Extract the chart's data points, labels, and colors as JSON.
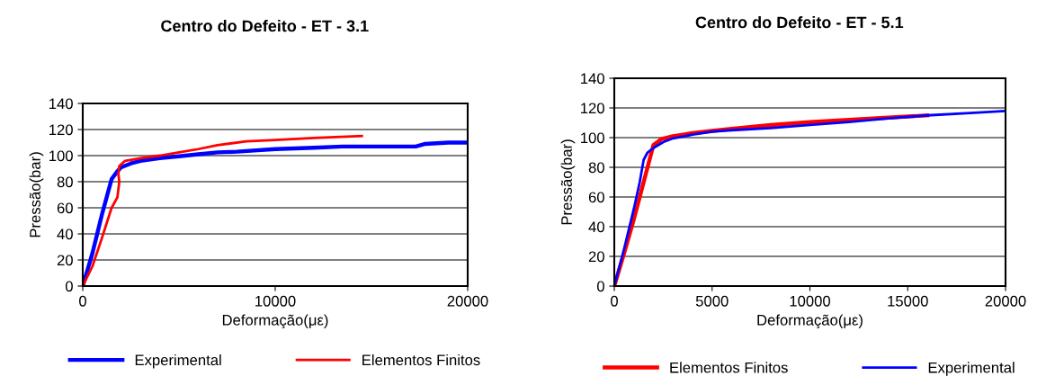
{
  "chart_data": [
    {
      "type": "line",
      "title": "Centro do Defeito - ET - 3.1",
      "xlabel": "Deformação(με)",
      "ylabel": "Pressão(bar)",
      "xlim": [
        0,
        20000
      ],
      "xticks": [
        0,
        10000,
        20000
      ],
      "ylim": [
        0,
        140
      ],
      "yticks": [
        0,
        20,
        40,
        60,
        80,
        100,
        120,
        140
      ],
      "grid": "y",
      "legend": "bottom",
      "marker": "none",
      "series": [
        {
          "name": "Experimental",
          "color": "#0000ff",
          "x": [
            0,
            500,
            1000,
            1500,
            1800,
            2000,
            2500,
            3000,
            4000,
            5000,
            6000,
            7000,
            8000,
            10000,
            12000,
            13500,
            17300,
            17800,
            19000,
            20000
          ],
          "values": [
            0,
            25,
            55,
            82,
            88,
            91,
            94,
            96,
            98,
            99.5,
            101,
            102.5,
            103,
            105,
            106,
            107,
            107,
            109,
            110,
            110
          ]
        },
        {
          "name": "Elementos Finitos",
          "color": "#ff0000",
          "x": [
            0,
            500,
            1000,
            1500,
            1800,
            1900,
            1850,
            1900,
            2200,
            3000,
            4000,
            5000,
            6000,
            7000,
            8500,
            10000,
            12000,
            14500
          ],
          "values": [
            0,
            15,
            37,
            60,
            68,
            80,
            86,
            92,
            96,
            98,
            100,
            102.5,
            105,
            108,
            111,
            112,
            113.5,
            115
          ]
        }
      ]
    },
    {
      "type": "line",
      "title": "Centro do Defeito - ET - 5.1",
      "xlabel": "Deformação(με)",
      "ylabel": "Pressão(bar)",
      "xlim": [
        0,
        20000
      ],
      "xticks": [
        0,
        5000,
        10000,
        15000,
        20000
      ],
      "ylim": [
        0,
        140
      ],
      "yticks": [
        0,
        20,
        40,
        60,
        80,
        100,
        120,
        140
      ],
      "grid": "y",
      "legend": "bottom",
      "marker": "none",
      "series": [
        {
          "name": "Elementos Finitos",
          "color": "#ff0000",
          "x": [
            0,
            500,
            1000,
            1500,
            2000,
            2400,
            3000,
            4000,
            5000,
            6000,
            8000,
            10000,
            12000,
            14000,
            16000
          ],
          "values": [
            0,
            22,
            45,
            70,
            95,
            99,
            101,
            103,
            104.5,
            106,
            108.5,
            110.5,
            112,
            113.5,
            115
          ]
        },
        {
          "name": "Experimental",
          "color": "#0000ff",
          "x": [
            0,
            500,
            1000,
            1300,
            1500,
            1700,
            2000,
            2500,
            3000,
            4000,
            5000,
            6000,
            8000,
            10000,
            12000,
            14000,
            16000,
            18000,
            20000
          ],
          "values": [
            0,
            25,
            52,
            70,
            85,
            90,
            93,
            97,
            99.5,
            102,
            104,
            105,
            106.5,
            108.5,
            110.5,
            113,
            115,
            116.5,
            118
          ]
        }
      ]
    }
  ]
}
